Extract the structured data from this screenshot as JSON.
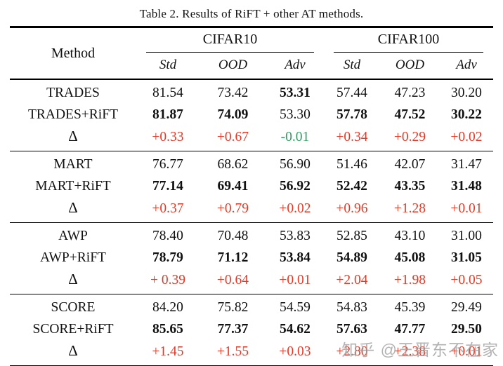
{
  "caption": "Table 2. Results of RiFT + other AT methods.",
  "watermark": "知乎 @王晋东不在家",
  "colors": {
    "red": "#e23a28",
    "green": "#2f9e60",
    "text": "#111111"
  },
  "header": {
    "method": "Method",
    "groups": [
      {
        "label": "CIFAR10"
      },
      {
        "label": "CIFAR100"
      }
    ],
    "subcolumns": [
      "Std",
      "OOD",
      "Adv"
    ]
  },
  "groups": [
    {
      "rows": [
        {
          "method": "TRADES",
          "is_delta": false,
          "cells": [
            {
              "v": "81.54"
            },
            {
              "v": "73.42"
            },
            {
              "v": "53.31",
              "bold": true
            },
            {
              "v": "57.44"
            },
            {
              "v": "47.23"
            },
            {
              "v": "30.20"
            }
          ]
        },
        {
          "method": "TRADES+RiFT",
          "is_delta": false,
          "cells": [
            {
              "v": "81.87",
              "bold": true
            },
            {
              "v": "74.09",
              "bold": true
            },
            {
              "v": "53.30"
            },
            {
              "v": "57.78",
              "bold": true
            },
            {
              "v": "47.52",
              "bold": true
            },
            {
              "v": "30.22",
              "bold": true
            }
          ]
        },
        {
          "method": "Δ",
          "is_delta": true,
          "cells": [
            {
              "v": "+0.33",
              "color": "red"
            },
            {
              "v": "+0.67",
              "color": "red"
            },
            {
              "v": "-0.01",
              "color": "green"
            },
            {
              "v": "+0.34",
              "color": "red"
            },
            {
              "v": "+0.29",
              "color": "red"
            },
            {
              "v": "+0.02",
              "color": "red"
            }
          ]
        }
      ]
    },
    {
      "rows": [
        {
          "method": "MART",
          "is_delta": false,
          "cells": [
            {
              "v": "76.77"
            },
            {
              "v": "68.62"
            },
            {
              "v": "56.90"
            },
            {
              "v": "51.46"
            },
            {
              "v": "42.07"
            },
            {
              "v": "31.47"
            }
          ]
        },
        {
          "method": "MART+RiFT",
          "is_delta": false,
          "cells": [
            {
              "v": "77.14",
              "bold": true
            },
            {
              "v": "69.41",
              "bold": true
            },
            {
              "v": "56.92",
              "bold": true
            },
            {
              "v": "52.42",
              "bold": true
            },
            {
              "v": "43.35",
              "bold": true
            },
            {
              "v": "31.48",
              "bold": true
            }
          ]
        },
        {
          "method": "Δ",
          "is_delta": true,
          "cells": [
            {
              "v": "+0.37",
              "color": "red"
            },
            {
              "v": "+0.79",
              "color": "red"
            },
            {
              "v": "+0.02",
              "color": "red"
            },
            {
              "v": "+0.96",
              "color": "red"
            },
            {
              "v": "+1.28",
              "color": "red"
            },
            {
              "v": "+0.01",
              "color": "red"
            }
          ]
        }
      ]
    },
    {
      "rows": [
        {
          "method": "AWP",
          "is_delta": false,
          "cells": [
            {
              "v": "78.40"
            },
            {
              "v": "70.48"
            },
            {
              "v": "53.83"
            },
            {
              "v": "52.85"
            },
            {
              "v": "43.10"
            },
            {
              "v": "31.00"
            }
          ]
        },
        {
          "method": "AWP+RiFT",
          "is_delta": false,
          "cells": [
            {
              "v": "78.79",
              "bold": true
            },
            {
              "v": "71.12",
              "bold": true
            },
            {
              "v": "53.84",
              "bold": true
            },
            {
              "v": "54.89",
              "bold": true
            },
            {
              "v": "45.08",
              "bold": true
            },
            {
              "v": "31.05",
              "bold": true
            }
          ]
        },
        {
          "method": "Δ",
          "is_delta": true,
          "cells": [
            {
              "v": "+ 0.39",
              "color": "red"
            },
            {
              "v": "+0.64",
              "color": "red"
            },
            {
              "v": "+0.01",
              "color": "red"
            },
            {
              "v": "+2.04",
              "color": "red"
            },
            {
              "v": "+1.98",
              "color": "red"
            },
            {
              "v": "+0.05",
              "color": "red"
            }
          ]
        }
      ]
    },
    {
      "rows": [
        {
          "method": "SCORE",
          "is_delta": false,
          "cells": [
            {
              "v": "84.20"
            },
            {
              "v": "75.82"
            },
            {
              "v": "54.59"
            },
            {
              "v": "54.83"
            },
            {
              "v": "45.39"
            },
            {
              "v": "29.49"
            }
          ]
        },
        {
          "method": "SCORE+RiFT",
          "is_delta": false,
          "cells": [
            {
              "v": "85.65",
              "bold": true
            },
            {
              "v": "77.37",
              "bold": true
            },
            {
              "v": "54.62",
              "bold": true
            },
            {
              "v": "57.63",
              "bold": true
            },
            {
              "v": "47.77",
              "bold": true
            },
            {
              "v": "29.50",
              "bold": true
            }
          ]
        },
        {
          "method": "Δ",
          "is_delta": true,
          "cells": [
            {
              "v": "+1.45",
              "color": "red"
            },
            {
              "v": "+1.55",
              "color": "red"
            },
            {
              "v": "+0.03",
              "color": "red"
            },
            {
              "v": "+2.80",
              "color": "red"
            },
            {
              "v": "+2.38",
              "color": "red"
            },
            {
              "v": "+0.01",
              "color": "red"
            }
          ]
        }
      ]
    }
  ],
  "chart_data": {
    "type": "table",
    "title": "Table 2. Results of RiFT + other AT methods.",
    "columns": [
      "Method",
      "CIFAR10 Std",
      "CIFAR10 OOD",
      "CIFAR10 Adv",
      "CIFAR100 Std",
      "CIFAR100 OOD",
      "CIFAR100 Adv"
    ],
    "rows": [
      [
        "TRADES",
        81.54,
        73.42,
        53.31,
        57.44,
        47.23,
        30.2
      ],
      [
        "TRADES+RiFT",
        81.87,
        74.09,
        53.3,
        57.78,
        47.52,
        30.22
      ],
      [
        "Δ",
        0.33,
        0.67,
        -0.01,
        0.34,
        0.29,
        0.02
      ],
      [
        "MART",
        76.77,
        68.62,
        56.9,
        51.46,
        42.07,
        31.47
      ],
      [
        "MART+RiFT",
        77.14,
        69.41,
        56.92,
        52.42,
        43.35,
        31.48
      ],
      [
        "Δ",
        0.37,
        0.79,
        0.02,
        0.96,
        1.28,
        0.01
      ],
      [
        "AWP",
        78.4,
        70.48,
        53.83,
        52.85,
        43.1,
        31.0
      ],
      [
        "AWP+RiFT",
        78.79,
        71.12,
        53.84,
        54.89,
        45.08,
        31.05
      ],
      [
        "Δ",
        0.39,
        0.64,
        0.01,
        2.04,
        1.98,
        0.05
      ],
      [
        "SCORE",
        84.2,
        75.82,
        54.59,
        54.83,
        45.39,
        29.49
      ],
      [
        "SCORE+RiFT",
        85.65,
        77.37,
        54.62,
        57.63,
        47.77,
        29.5
      ],
      [
        "Δ",
        1.45,
        1.55,
        0.03,
        2.8,
        2.38,
        0.01
      ]
    ]
  }
}
